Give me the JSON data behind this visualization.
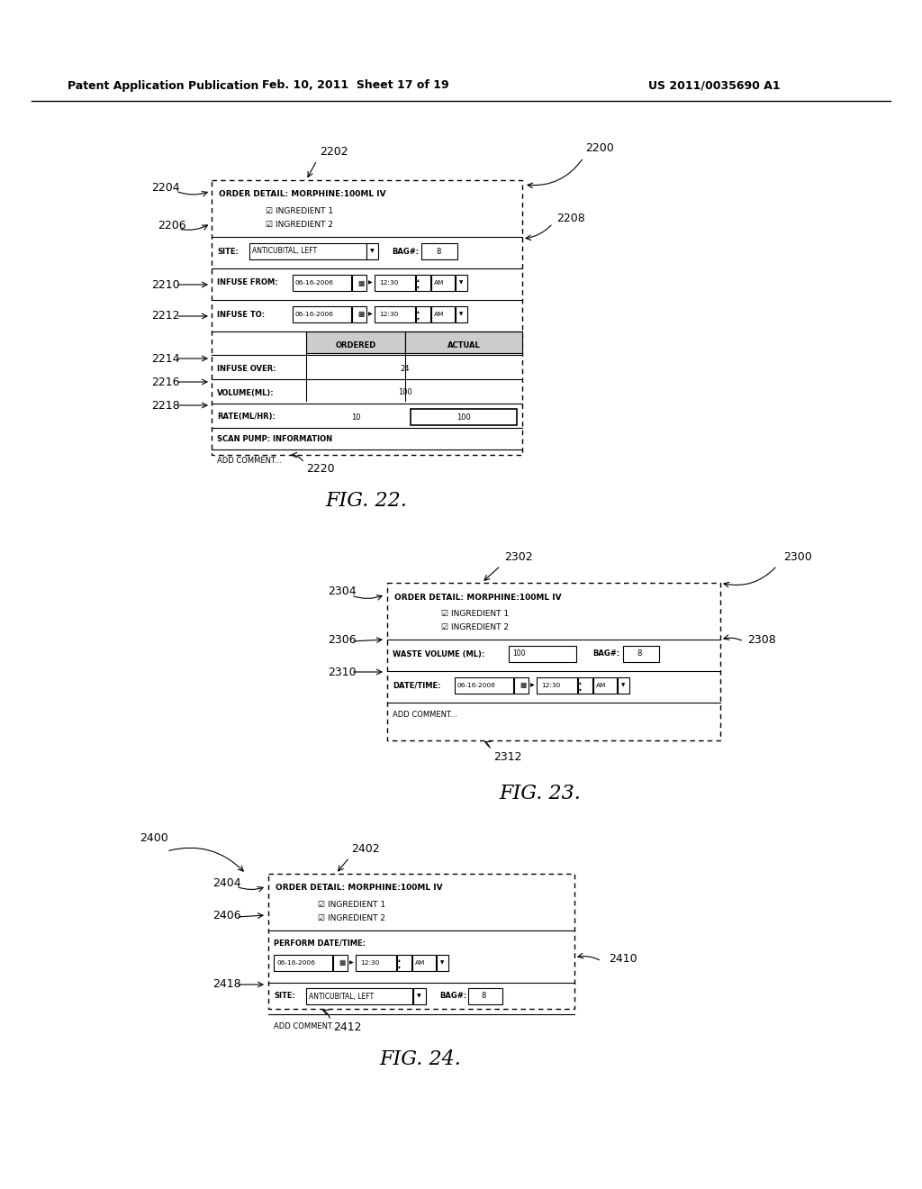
{
  "bg_color": "#ffffff",
  "header_left": "Patent Application Publication",
  "header_mid": "Feb. 10, 2011  Sheet 17 of 19",
  "header_right": "US 2011/0035690 A1",
  "fig22_label": "FIG. 22.",
  "fig23_label": "FIG. 23.",
  "fig24_label": "FIG. 24."
}
